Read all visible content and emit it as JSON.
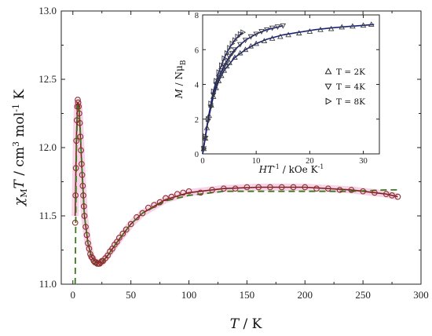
{
  "chart_data": [
    {
      "type": "scatter",
      "xlabel": "T / K",
      "xlabel_parts": {
        "var": "T",
        "unit": " / K"
      },
      "ylabel_parts": {
        "chi": "χ",
        "sub": "M",
        "T": "T",
        "unit": " / cm",
        "u1": "3",
        "mol": " mol",
        "u2": "-1",
        "K": " K"
      },
      "xlim": [
        -10,
        300
      ],
      "ylim": [
        11.0,
        13.0
      ],
      "xticks": [
        "0",
        "50",
        "100",
        "150",
        "200",
        "250",
        "300"
      ],
      "yticks": [
        "11.0",
        "11.5",
        "12.0",
        "12.5",
        "13.0"
      ],
      "series": [
        {
          "marker": "circle",
          "color": "#8b2f2f",
          "x": [
            2.0,
            2.3,
            2.6,
            3.0,
            3.4,
            3.8,
            4.2,
            4.6,
            5.0,
            5.5,
            6.0,
            6.5,
            7.0,
            7.5,
            8.0,
            8.5,
            9.0,
            9.5,
            10,
            11,
            12,
            13,
            14,
            15,
            16,
            17,
            18,
            19,
            20,
            21,
            22,
            23,
            24,
            25,
            26,
            28,
            30,
            32,
            34,
            36,
            38,
            40,
            43,
            46,
            50,
            55,
            60,
            65,
            70,
            75,
            80,
            85,
            90,
            95,
            100,
            110,
            120,
            130,
            140,
            150,
            160,
            170,
            180,
            190,
            200,
            210,
            220,
            230,
            240,
            250,
            260,
            270,
            275,
            280
          ],
          "y": [
            11.45,
            11.65,
            11.85,
            12.05,
            12.2,
            12.3,
            12.35,
            12.33,
            12.3,
            12.25,
            12.18,
            12.08,
            11.98,
            11.88,
            11.8,
            11.72,
            11.65,
            11.57,
            11.5,
            11.42,
            11.36,
            11.3,
            11.26,
            11.22,
            11.2,
            11.19,
            11.17,
            11.16,
            11.16,
            11.15,
            11.15,
            11.15,
            11.16,
            11.17,
            11.17,
            11.19,
            11.21,
            11.24,
            11.26,
            11.29,
            11.31,
            11.34,
            11.37,
            11.4,
            11.44,
            11.49,
            11.52,
            11.56,
            11.58,
            11.6,
            11.63,
            11.64,
            11.66,
            11.67,
            11.68,
            11.67,
            11.69,
            11.7,
            11.7,
            11.71,
            11.71,
            11.71,
            11.71,
            11.71,
            11.71,
            11.7,
            11.7,
            11.69,
            11.69,
            11.68,
            11.67,
            11.66,
            11.65,
            11.64
          ]
        },
        {
          "type": "line",
          "style": "solid",
          "color": "#7a1f1f",
          "x": [
            2,
            3,
            4,
            5,
            6,
            8,
            10,
            13,
            16,
            20,
            25,
            30,
            40,
            50,
            60,
            80,
            100,
            130,
            160,
            200,
            240,
            270,
            280
          ],
          "y": [
            11.5,
            12.05,
            12.33,
            12.32,
            12.18,
            11.8,
            11.5,
            11.3,
            11.2,
            11.16,
            11.16,
            11.21,
            11.33,
            11.44,
            11.52,
            11.62,
            11.67,
            11.7,
            11.71,
            11.71,
            11.69,
            11.66,
            11.64
          ]
        },
        {
          "type": "line",
          "style": "dashed",
          "color": "#3a7a1a",
          "x": [
            2,
            3,
            4,
            5,
            6,
            8,
            10,
            13,
            16,
            20,
            25,
            30,
            40,
            50,
            60,
            80,
            100,
            130,
            160,
            200,
            240,
            270,
            280
          ],
          "y": [
            11.0,
            11.95,
            12.3,
            12.32,
            12.2,
            11.82,
            11.5,
            11.3,
            11.2,
            11.16,
            11.16,
            11.21,
            11.33,
            11.44,
            11.52,
            11.61,
            11.65,
            11.68,
            11.68,
            11.68,
            11.68,
            11.69,
            11.69
          ]
        }
      ]
    },
    {
      "type": "scatter",
      "name": "inset",
      "xlabel_parts": {
        "H": "HT",
        "sup": "-1",
        "unit": " / kOe K",
        "sup2": "-1"
      },
      "ylabel_parts": {
        "M": "M",
        "unit": " / Nμ",
        "sub": "B"
      },
      "xlim": [
        0,
        33
      ],
      "ylim": [
        0,
        8
      ],
      "xticks": [
        "0",
        "10",
        "20",
        "30"
      ],
      "yticks": [
        "0",
        "2",
        "4",
        "6",
        "8"
      ],
      "legend": [
        "T = 2K",
        "T = 4K",
        "T = 8K"
      ],
      "legend_position": "right",
      "series": [
        {
          "name": "T = 2K",
          "marker": "triangle-up",
          "x": [
            0.2,
            0.5,
            0.8,
            1.2,
            1.6,
            2.0,
            2.5,
            3.0,
            3.5,
            4.0,
            4.5,
            5.0,
            6.0,
            7.0,
            8.0,
            9.0,
            10.0,
            11.5,
            13.0,
            14.5,
            16.0,
            18.0,
            20.0,
            22.0,
            24.0,
            26.0,
            28.0,
            30.0,
            31.5
          ],
          "y": [
            0.3,
            0.9,
            1.5,
            2.2,
            2.8,
            3.3,
            3.8,
            4.2,
            4.5,
            4.8,
            5.05,
            5.25,
            5.55,
            5.8,
            6.0,
            6.2,
            6.35,
            6.5,
            6.65,
            6.75,
            6.85,
            6.95,
            7.05,
            7.15,
            7.2,
            7.3,
            7.35,
            7.4,
            7.45
          ]
        },
        {
          "name": "T = 4K",
          "marker": "triangle-down",
          "x": [
            0.2,
            0.5,
            1.0,
            1.5,
            2.0,
            2.5,
            3.0,
            3.5,
            4.0,
            4.5,
            5.0,
            5.5,
            6.0,
            7.0,
            8.0,
            9.0,
            10.0,
            11.0,
            12.0,
            13.0,
            14.0,
            15.0
          ],
          "y": [
            0.3,
            0.9,
            1.9,
            2.7,
            3.4,
            4.0,
            4.4,
            4.8,
            5.1,
            5.35,
            5.6,
            5.8,
            6.0,
            6.3,
            6.55,
            6.75,
            6.9,
            7.05,
            7.15,
            7.25,
            7.32,
            7.38
          ]
        },
        {
          "name": "T = 8K",
          "marker": "triangle-right",
          "x": [
            0.2,
            0.5,
            1.0,
            1.5,
            2.0,
            2.5,
            3.0,
            3.5,
            4.0,
            4.5,
            5.0,
            5.5,
            6.0,
            6.5,
            7.0,
            7.5
          ],
          "y": [
            0.3,
            1.0,
            2.0,
            2.9,
            3.6,
            4.2,
            4.7,
            5.1,
            5.5,
            5.8,
            6.1,
            6.35,
            6.55,
            6.75,
            6.9,
            7.0
          ]
        },
        {
          "type": "line",
          "color": "#1a237e",
          "x": [
            0,
            1,
            2,
            3,
            4,
            6,
            8,
            10,
            12,
            15,
            18,
            21,
            24,
            27,
            30,
            32
          ],
          "y": [
            0,
            1.9,
            3.3,
            4.2,
            4.8,
            5.55,
            6.0,
            6.35,
            6.6,
            6.85,
            7.0,
            7.15,
            7.25,
            7.33,
            7.4,
            7.45
          ]
        },
        {
          "type": "line",
          "color": "#1a237e",
          "x": [
            0,
            1,
            2,
            3,
            4,
            5,
            6,
            8,
            10,
            12,
            14,
            15
          ],
          "y": [
            0,
            1.9,
            3.4,
            4.4,
            5.1,
            5.6,
            6.0,
            6.55,
            6.9,
            7.15,
            7.3,
            7.38
          ]
        },
        {
          "type": "line",
          "color": "#1a237e",
          "x": [
            0,
            1,
            2,
            3,
            4,
            5,
            6,
            7,
            7.5
          ],
          "y": [
            0,
            2.0,
            3.6,
            4.7,
            5.5,
            6.1,
            6.55,
            6.88,
            7.0
          ]
        }
      ]
    }
  ]
}
